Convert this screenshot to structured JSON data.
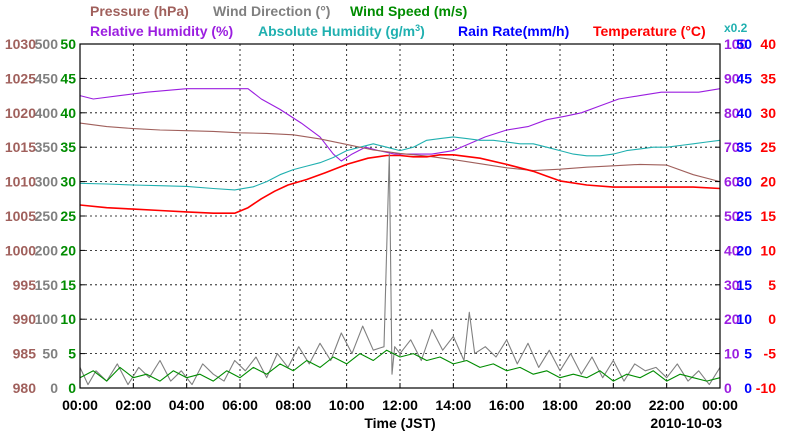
{
  "chart_data": {
    "type": "line",
    "xlabel": "Time (JST)",
    "date_label": "2010-10-03",
    "x_tick_labels": [
      "00:00",
      "02:00",
      "04:00",
      "06:00",
      "08:00",
      "10:00",
      "12:00",
      "14:00",
      "16:00",
      "18:00",
      "20:00",
      "22:00",
      "00:00"
    ],
    "xlim_hours": [
      0,
      24
    ],
    "grid": true,
    "legend": [
      {
        "key": "pressure",
        "label": "Pressure (hPa)",
        "color": "#a0605c"
      },
      {
        "key": "wind_dir",
        "label": "Wind Direction (°)",
        "color": "#808080"
      },
      {
        "key": "wind_speed",
        "label": "Wind Speed (m/s)",
        "color": "#008c00"
      },
      {
        "key": "rel_hum",
        "label": "Relative Humidity (%)",
        "color": "#9b1ee0"
      },
      {
        "key": "abs_hum",
        "label": "Absolute Humidity (g/m3)",
        "label_sup": "3",
        "color": "#20b0b0"
      },
      {
        "key": "rain",
        "label": "Rain Rate(mm/h)",
        "color": "#0000ff"
      },
      {
        "key": "temp",
        "label": "Temperature (°C)",
        "color": "#ff0000"
      }
    ],
    "abs_hum_scale_note": "x0.2",
    "axes": {
      "pressure": {
        "color": "#a0605c",
        "ticks": [
          1030,
          1025,
          1020,
          1015,
          1010,
          1005,
          1000,
          995,
          990,
          985,
          980
        ],
        "ylim": [
          980,
          1030
        ]
      },
      "wind_dir": {
        "color": "#808080",
        "ticks": [
          500,
          450,
          400,
          350,
          300,
          250,
          200,
          150,
          100,
          50,
          0
        ],
        "ylim": [
          0,
          500
        ]
      },
      "wind_speed": {
        "color": "#008c00",
        "ticks": [
          50,
          45,
          40,
          35,
          30,
          25,
          20,
          15,
          10,
          5,
          0
        ],
        "ylim": [
          0,
          50
        ]
      },
      "rel_hum": {
        "color": "#9b1ee0",
        "ticks": [
          100,
          90,
          80,
          70,
          60,
          50,
          40,
          30,
          20,
          10,
          0
        ],
        "ylim": [
          0,
          100
        ]
      },
      "rain": {
        "color": "#0000ff",
        "ticks": [
          50,
          45,
          40,
          35,
          30,
          25,
          20,
          15,
          10,
          5,
          0
        ],
        "ylim": [
          0,
          50
        ]
      },
      "temp": {
        "color": "#ff0000",
        "ticks": [
          40,
          35,
          30,
          25,
          20,
          15,
          10,
          5,
          0,
          -5,
          -10
        ],
        "ylim": [
          -10,
          40
        ]
      }
    },
    "series": [
      {
        "key": "rel_hum",
        "axis": "rel_hum",
        "color": "#9b1ee0",
        "x": [
          0,
          0.5,
          1.5,
          2.5,
          4,
          5.5,
          6.3,
          6.8,
          7.5,
          8.3,
          9,
          9.5,
          9.8,
          10.2,
          10.7,
          11.2,
          11.8,
          12.5,
          13.2,
          14,
          14.6,
          15.2,
          16,
          16.8,
          17.5,
          18.2,
          18.8,
          19.5,
          20.2,
          21,
          21.8,
          22.5,
          23.2,
          24
        ],
        "y": [
          85,
          84,
          85,
          86,
          87,
          87,
          87,
          84,
          81,
          77,
          73,
          68,
          66,
          68,
          70,
          69,
          68,
          68,
          68,
          69,
          71,
          73,
          75,
          76,
          78,
          79,
          80,
          82,
          84,
          85,
          86,
          86,
          86,
          87
        ]
      },
      {
        "key": "abs_hum",
        "axis": "rel_hum",
        "color": "#20b0b0",
        "x": [
          0,
          1,
          2,
          3,
          4,
          5,
          5.8,
          6.5,
          7,
          7.5,
          8,
          8.5,
          9,
          9.5,
          10,
          10.5,
          11,
          11.5,
          12,
          12.5,
          13,
          13.5,
          14,
          14.5,
          15,
          15.5,
          16,
          16.5,
          17,
          17.5,
          18,
          18.5,
          19,
          19.5,
          20,
          20.5,
          21,
          21.5,
          22,
          22.5,
          23,
          23.5,
          24
        ],
        "y": [
          59.5,
          59.3,
          59,
          58.8,
          58.6,
          58,
          57.6,
          58.5,
          60,
          62,
          63.5,
          64.5,
          65.5,
          67,
          69,
          70,
          71,
          70,
          69,
          70,
          72,
          72.5,
          73,
          72.5,
          72,
          72,
          71.5,
          71,
          71,
          70,
          69,
          68,
          67.5,
          67.5,
          68,
          69,
          69.5,
          70,
          70,
          70.5,
          71,
          71.5,
          72
        ]
      },
      {
        "key": "pressure",
        "axis": "pressure",
        "color": "#a0605c",
        "x": [
          0,
          1,
          2,
          3,
          4,
          5,
          6,
          7,
          8,
          9,
          10,
          11,
          12,
          13,
          14,
          15,
          16,
          17,
          18,
          19,
          20,
          21,
          22,
          23,
          24
        ],
        "y": [
          1018.5,
          1018,
          1017.7,
          1017.5,
          1017.4,
          1017.3,
          1017.1,
          1017,
          1016.8,
          1016.2,
          1015.4,
          1014.6,
          1014.1,
          1013.7,
          1013.2,
          1012.6,
          1012,
          1011.6,
          1011.8,
          1012.1,
          1012.3,
          1012.5,
          1012.4,
          1011,
          1010
        ]
      },
      {
        "key": "temp",
        "axis": "temp",
        "color": "#ff0000",
        "x": [
          0,
          1,
          2,
          3,
          4,
          5,
          5.8,
          6.3,
          6.8,
          7.3,
          7.8,
          8.5,
          9.2,
          10,
          10.8,
          11.5,
          12,
          12.5,
          13,
          13.5,
          14,
          15,
          16,
          17,
          17.5,
          18,
          19,
          20,
          21,
          22,
          23,
          24
        ],
        "y": [
          16.6,
          16.2,
          16,
          15.8,
          15.6,
          15.4,
          15.4,
          16.2,
          17.5,
          18.6,
          19.5,
          20.3,
          21.3,
          22.5,
          23.4,
          23.8,
          23.8,
          23.6,
          23.6,
          23.9,
          23.9,
          23.4,
          22.5,
          21.5,
          20.8,
          20.1,
          19.5,
          19.2,
          19.2,
          19.2,
          19.2,
          19
        ]
      },
      {
        "key": "wind_dir",
        "axis": "wind_dir",
        "color": "#808080",
        "x": [
          0,
          0.3,
          0.6,
          1,
          1.4,
          1.8,
          2.2,
          2.6,
          3,
          3.4,
          3.8,
          4.2,
          4.6,
          5,
          5.4,
          5.8,
          6.2,
          6.6,
          7,
          7.4,
          7.8,
          8.2,
          8.6,
          9,
          9.4,
          9.8,
          10.2,
          10.6,
          11,
          11.4,
          11.6,
          11.7,
          11.8,
          12,
          12.4,
          12.8,
          13.2,
          13.6,
          14,
          14.4,
          14.6,
          14.8,
          15.2,
          15.6,
          16,
          16.4,
          16.8,
          17.2,
          17.6,
          18,
          18.4,
          18.8,
          19.2,
          19.6,
          20,
          20.4,
          20.8,
          21.2,
          21.6,
          22,
          22.4,
          22.8,
          23.2,
          23.6,
          24
        ],
        "y": [
          30,
          5,
          25,
          10,
          35,
          5,
          30,
          15,
          40,
          10,
          25,
          5,
          35,
          20,
          10,
          40,
          25,
          45,
          15,
          50,
          30,
          60,
          35,
          65,
          40,
          80,
          50,
          90,
          55,
          60,
          340,
          20,
          60,
          50,
          70,
          40,
          85,
          55,
          75,
          40,
          110,
          50,
          60,
          45,
          70,
          35,
          65,
          30,
          55,
          25,
          50,
          20,
          45,
          15,
          40,
          10,
          35,
          25,
          30,
          15,
          35,
          10,
          25,
          5,
          30
        ]
      },
      {
        "key": "wind_speed",
        "axis": "wind_speed",
        "color": "#008c00",
        "x": [
          0,
          0.5,
          1,
          1.5,
          2,
          2.5,
          3,
          3.5,
          4,
          4.5,
          5,
          5.5,
          6,
          6.5,
          7,
          7.5,
          8,
          8.5,
          9,
          9.5,
          10,
          10.5,
          11,
          11.5,
          12,
          12.5,
          13,
          13.5,
          14,
          14.5,
          15,
          15.5,
          16,
          16.5,
          17,
          17.5,
          18,
          18.5,
          19,
          19.5,
          20,
          20.5,
          21,
          21.5,
          22,
          22.5,
          23,
          23.5,
          24
        ],
        "y": [
          1.5,
          2.5,
          1,
          3,
          1.5,
          2,
          1,
          2.5,
          1.5,
          2,
          1,
          2.5,
          1.5,
          3,
          2,
          3.5,
          2.5,
          4,
          3,
          4.5,
          3.5,
          5,
          4,
          5.5,
          4.5,
          5,
          4,
          4.5,
          3.5,
          4,
          3,
          3.5,
          2.5,
          3,
          2,
          2.5,
          1.5,
          2,
          1.5,
          2.5,
          1,
          2,
          1.5,
          2.5,
          1,
          2,
          1.5,
          1,
          1.5
        ]
      },
      {
        "key": "rain",
        "axis": "rain",
        "color": "#0000ff",
        "x": [
          0,
          24
        ],
        "y": [
          0,
          0
        ]
      }
    ]
  }
}
